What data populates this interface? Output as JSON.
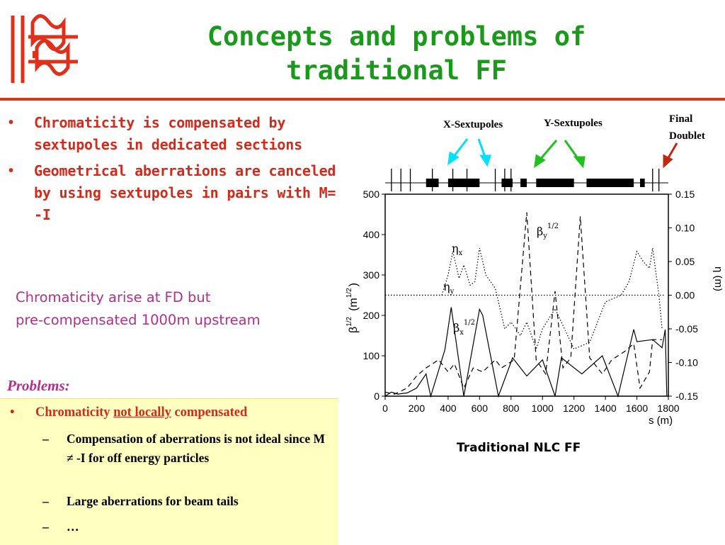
{
  "slide": {
    "title_line1": "Concepts and problems of",
    "title_line2": "traditional FF",
    "bullets": [
      "Chromaticity is compensated by sextupoles in dedicated sections",
      "Geometrical aberrations are canceled by using sextupoles in pairs with M= -I"
    ],
    "note_line1": "Chromaticity arise at FD but",
    "note_line2": "pre-compensated 1000m upstream",
    "problems_title": "Problems:",
    "problem_main_pre": "Chromaticity ",
    "problem_main_underlined": "not locally",
    "problem_main_post": " compensated",
    "sub_items": [
      "Compensation of aberrations is not ideal since M ≠ -I for off energy particles",
      "Large aberrations for beam tails",
      "…"
    ],
    "caption": "Traditional NLC FF"
  },
  "colors": {
    "title": "#1a9a1a",
    "bullets": "#d42a1a",
    "note": "#b0308a",
    "problems_box": "#ffffc0",
    "rule": "#d43a1a",
    "x_sextupole_arrow": "#00e0ff",
    "y_sextupole_arrow": "#20c020",
    "final_doublet_arrow": "#c02810"
  },
  "chart_data": {
    "type": "line",
    "labels": {
      "x_sextupoles": "X-Sextupoles",
      "y_sextupoles": "Y-Sextupoles",
      "final_doublet_line1": "Final",
      "final_doublet_line2": "Doublet"
    },
    "x_axis": {
      "label": "s (m)",
      "range": [
        0,
        1800
      ],
      "ticks": [
        "0",
        "200",
        "400",
        "600",
        "800",
        "1000",
        "1200",
        "1400",
        "1600",
        "1800"
      ]
    },
    "y_left": {
      "label_beta": "β",
      "label_beta_exp": "1/2",
      "label_unit": "(m",
      "label_unit_exp": "1/2",
      "label_unit_close": ")",
      "range": [
        0,
        500
      ],
      "ticks": [
        "500",
        "400",
        "300",
        "200",
        "100",
        "0"
      ]
    },
    "y_right": {
      "label": "η (m)",
      "range": [
        -0.15,
        0.15
      ],
      "ticks": [
        "0.15",
        "0.10",
        "0.05",
        "0.00",
        "-0.05",
        "-0.10",
        "-0.15"
      ]
    },
    "series_labels": {
      "eta_x": "η",
      "eta_x_sub": "x",
      "eta_y": "η",
      "eta_y_sub": "y",
      "beta_x": "β",
      "beta_x_sub": "x",
      "beta_x_exp": "1/2",
      "beta_y": "β",
      "beta_y_sub": "y",
      "beta_y_exp": "1/2"
    },
    "series": [
      {
        "name": "βx 1/2",
        "style": "solid",
        "axis": "left",
        "x": [
          0,
          40,
          80,
          140,
          200,
          260,
          270,
          290,
          380,
          420,
          500,
          600,
          620,
          720,
          810,
          900,
          1000,
          1080,
          1120,
          1250,
          1380,
          1480,
          1580,
          1600,
          1700,
          1760,
          1780,
          1790
        ],
        "y": [
          0,
          10,
          5,
          8,
          20,
          55,
          35,
          0,
          115,
          220,
          0,
          215,
          200,
          0,
          95,
          50,
          90,
          0,
          95,
          55,
          100,
          0,
          165,
          135,
          140,
          120,
          165,
          0
        ]
      },
      {
        "name": "βy 1/2",
        "style": "dashed",
        "axis": "left",
        "x": [
          0,
          60,
          140,
          200,
          260,
          340,
          400,
          440,
          500,
          560,
          620,
          700,
          740,
          820,
          900,
          960,
          1020,
          1080,
          1130,
          1180,
          1240,
          1300,
          1380,
          1440,
          1520,
          1580,
          1620,
          1680,
          1700,
          1760
        ],
        "y": [
          10,
          5,
          20,
          50,
          70,
          90,
          60,
          80,
          20,
          70,
          60,
          90,
          70,
          90,
          455,
          90,
          55,
          260,
          70,
          95,
          445,
          95,
          55,
          90,
          110,
          130,
          20,
          60,
          140,
          140
        ]
      },
      {
        "name": "ηx",
        "style": "dotted",
        "axis": "right",
        "x": [
          0,
          150,
          300,
          360,
          400,
          430,
          470,
          500,
          540,
          570,
          600,
          640,
          700,
          760,
          800,
          860,
          900,
          960,
          1000,
          1080,
          1200,
          1300,
          1400,
          1500,
          1550,
          1600,
          1640,
          1680,
          1700,
          1740,
          1760
        ],
        "y": [
          0.0,
          0.0,
          0.0,
          0.0,
          0.03,
          0.065,
          0.025,
          0.045,
          0.015,
          0.02,
          0.07,
          0.03,
          0.01,
          -0.05,
          -0.04,
          -0.06,
          -0.04,
          -0.08,
          -0.05,
          -0.02,
          -0.08,
          -0.07,
          -0.01,
          0.0,
          0.02,
          0.065,
          0.05,
          0.04,
          0.07,
          0.0,
          -0.05
        ]
      },
      {
        "name": "ηy",
        "style": "dotted",
        "axis": "right",
        "x": [
          0,
          1780
        ],
        "y": [
          0.0,
          0.0
        ]
      }
    ],
    "magnet_lattice": {
      "thin_lines_s": [
        40,
        100,
        160,
        300,
        430,
        520,
        700,
        760,
        800,
        1700,
        1740
      ],
      "blocks_s": [
        [
          260,
          340
        ],
        [
          400,
          600
        ],
        [
          740,
          810
        ],
        [
          860,
          900
        ],
        [
          960,
          1200
        ],
        [
          1280,
          1580
        ],
        [
          1620,
          1650
        ]
      ]
    },
    "grid": false,
    "legend": "none"
  }
}
